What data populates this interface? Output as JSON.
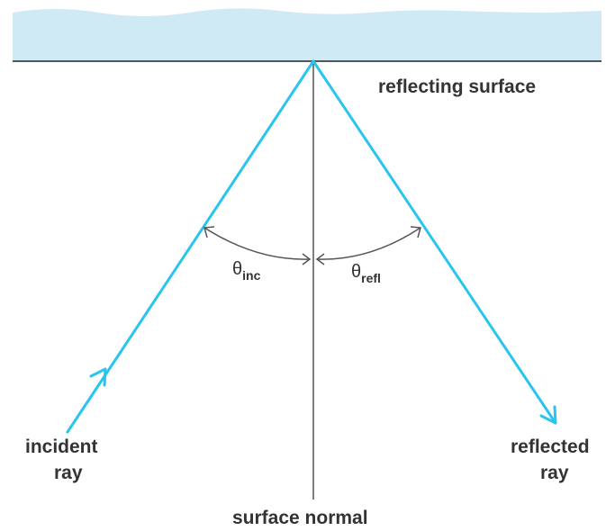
{
  "surface_label": "reflecting surface",
  "incident_label": [
    "incident",
    "ray"
  ],
  "reflected_label": [
    "reflected",
    "ray"
  ],
  "normal_label": "surface normal",
  "angle_incidence": {
    "symbol": "θ",
    "subscript": "inc"
  },
  "angle_reflection": {
    "symbol": "θ",
    "subscript": "refl"
  }
}
